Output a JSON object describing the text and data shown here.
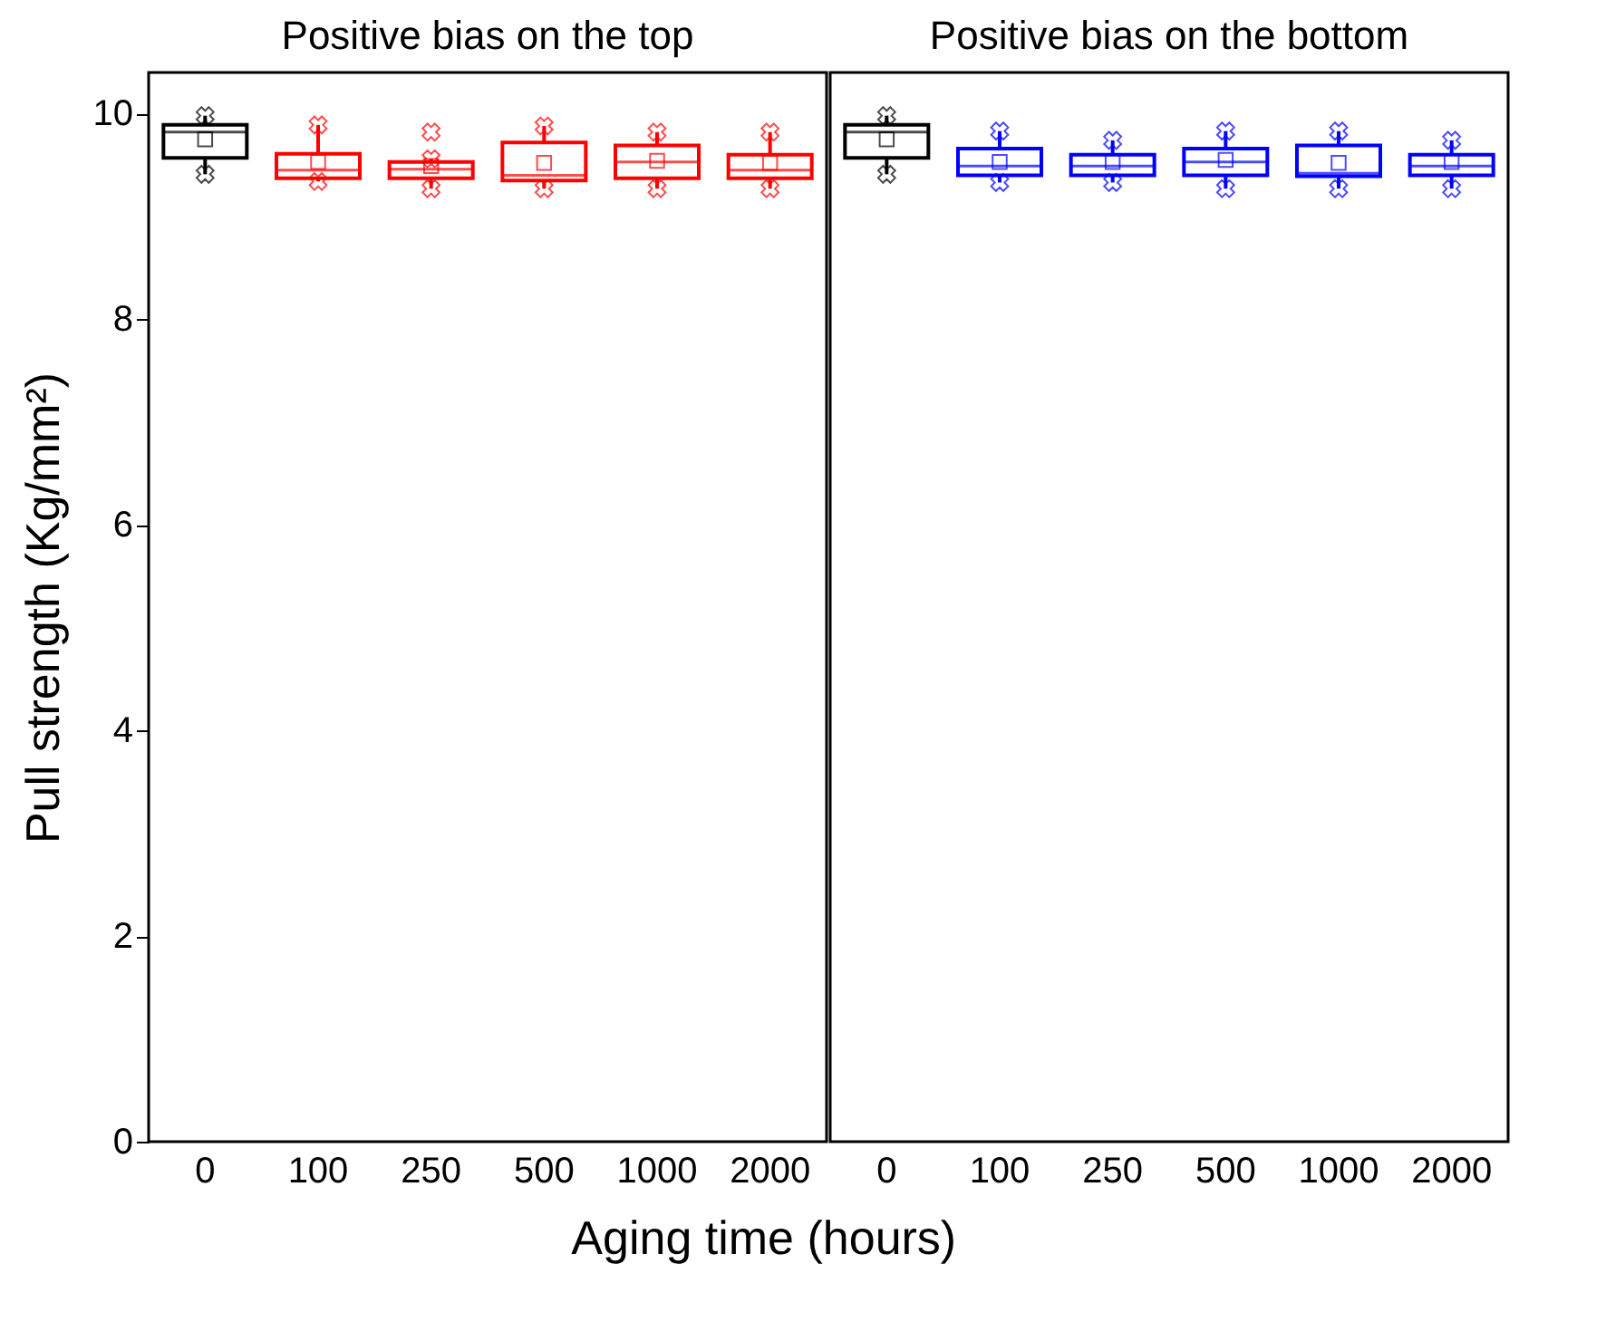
{
  "chart_data": [
    {
      "type": "box",
      "title": "Positive bias on the top",
      "xlabel": "Aging time (hours)",
      "ylabel": "Pull strength (Kg/mm²)",
      "categories": [
        "0",
        "100",
        "250",
        "500",
        "1000",
        "2000"
      ],
      "colors": [
        "#000000",
        "#ff0000",
        "#ff0000",
        "#ff0000",
        "#ff0000",
        "#ff0000"
      ],
      "ylim": [
        0,
        10.4
      ],
      "yticks": [
        0,
        2,
        4,
        6,
        8,
        10
      ],
      "grid": false,
      "marker": "cross",
      "boxes": [
        {
          "low": 9.41,
          "q1": 9.57,
          "median": 9.82,
          "q3": 9.89,
          "high": 9.98,
          "mean": 9.75,
          "outliers": [
            9.41,
            9.98
          ]
        },
        {
          "low": 9.34,
          "q1": 9.37,
          "median": 9.45,
          "q3": 9.61,
          "high": 9.89,
          "mean": 9.53,
          "outliers": [
            9.34,
            9.89
          ]
        },
        {
          "low": 9.27,
          "q1": 9.37,
          "median": 9.46,
          "q3": 9.53,
          "high": 9.56,
          "mean": 9.49,
          "outliers": [
            9.27,
            9.56,
            9.82
          ]
        },
        {
          "low": 9.27,
          "q1": 9.35,
          "median": 9.4,
          "q3": 9.72,
          "high": 9.88,
          "mean": 9.52,
          "outliers": [
            9.27,
            9.88
          ]
        },
        {
          "low": 9.27,
          "q1": 9.37,
          "median": 9.53,
          "q3": 9.69,
          "high": 9.82,
          "mean": 9.54,
          "outliers": [
            9.27,
            9.82
          ]
        },
        {
          "low": 9.27,
          "q1": 9.37,
          "median": 9.45,
          "q3": 9.6,
          "high": 9.82,
          "mean": 9.52,
          "outliers": [
            9.27,
            9.82
          ]
        }
      ]
    },
    {
      "type": "box",
      "title": "Positive bias on the bottom",
      "categories": [
        "0",
        "100",
        "250",
        "500",
        "1000",
        "2000"
      ],
      "colors": [
        "#000000",
        "#0000ff",
        "#0000ff",
        "#0000ff",
        "#0000ff",
        "#0000ff"
      ],
      "ylim": [
        0,
        10.4
      ],
      "yticks": [
        0,
        2,
        4,
        6,
        8,
        10
      ],
      "grid": false,
      "marker": "cross",
      "tick_labels": "x",
      "boxes": [
        {
          "low": 9.41,
          "q1": 9.57,
          "median": 9.82,
          "q3": 9.89,
          "high": 9.98,
          "mean": 9.75,
          "outliers": [
            9.41,
            9.98
          ]
        },
        {
          "low": 9.33,
          "q1": 9.4,
          "median": 9.49,
          "q3": 9.66,
          "high": 9.83,
          "mean": 9.53,
          "outliers": [
            9.33,
            9.83
          ]
        },
        {
          "low": 9.33,
          "q1": 9.4,
          "median": 9.49,
          "q3": 9.6,
          "high": 9.74,
          "mean": 9.53,
          "outliers": [
            9.33,
            9.74
          ]
        },
        {
          "low": 9.27,
          "q1": 9.4,
          "median": 9.53,
          "q3": 9.66,
          "high": 9.83,
          "mean": 9.55,
          "outliers": [
            9.27,
            9.83
          ]
        },
        {
          "low": 9.27,
          "q1": 9.39,
          "median": 9.42,
          "q3": 9.69,
          "high": 9.83,
          "mean": 9.52,
          "outliers": [
            9.27,
            9.83
          ]
        },
        {
          "low": 9.27,
          "q1": 9.4,
          "median": 9.49,
          "q3": 9.6,
          "high": 9.74,
          "mean": 9.53,
          "outliers": [
            9.27,
            9.74
          ]
        }
      ]
    }
  ]
}
